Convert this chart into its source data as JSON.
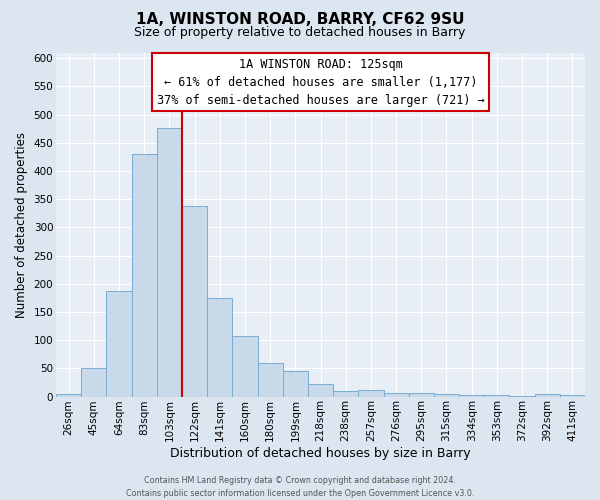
{
  "title_line1": "1A, WINSTON ROAD, BARRY, CF62 9SU",
  "title_line2": "Size of property relative to detached houses in Barry",
  "xlabel": "Distribution of detached houses by size in Barry",
  "ylabel": "Number of detached properties",
  "bin_labels": [
    "26sqm",
    "45sqm",
    "64sqm",
    "83sqm",
    "103sqm",
    "122sqm",
    "141sqm",
    "160sqm",
    "180sqm",
    "199sqm",
    "218sqm",
    "238sqm",
    "257sqm",
    "276sqm",
    "295sqm",
    "315sqm",
    "334sqm",
    "353sqm",
    "372sqm",
    "392sqm",
    "411sqm"
  ],
  "bar_heights": [
    5,
    50,
    188,
    430,
    476,
    338,
    174,
    107,
    60,
    45,
    22,
    10,
    11,
    7,
    6,
    5,
    2,
    3,
    1,
    4,
    2
  ],
  "bar_color": "#c8d9ea",
  "bar_edge_color": "#7aadd4",
  "vline_color": "#cc0000",
  "ylim": [
    0,
    610
  ],
  "yticks": [
    0,
    50,
    100,
    150,
    200,
    250,
    300,
    350,
    400,
    450,
    500,
    550,
    600
  ],
  "annotation_title": "1A WINSTON ROAD: 125sqm",
  "annotation_line1": "← 61% of detached houses are smaller (1,177)",
  "annotation_line2": "37% of semi-detached houses are larger (721) →",
  "annotation_box_facecolor": "#ffffff",
  "annotation_box_edgecolor": "#cc0000",
  "fig_facecolor": "#dce6f0",
  "ax_facecolor": "#e8eef5",
  "grid_color": "#ffffff",
  "footer_line1": "Contains HM Land Registry data © Crown copyright and database right 2024.",
  "footer_line2": "Contains public sector information licensed under the Open Government Licence v3.0.",
  "ylabel_fontsize": 8.5,
  "xlabel_fontsize": 9,
  "tick_fontsize": 7.5,
  "title1_fontsize": 11,
  "title2_fontsize": 9,
  "ann_fontsize": 8.5,
  "footer_fontsize": 5.8
}
